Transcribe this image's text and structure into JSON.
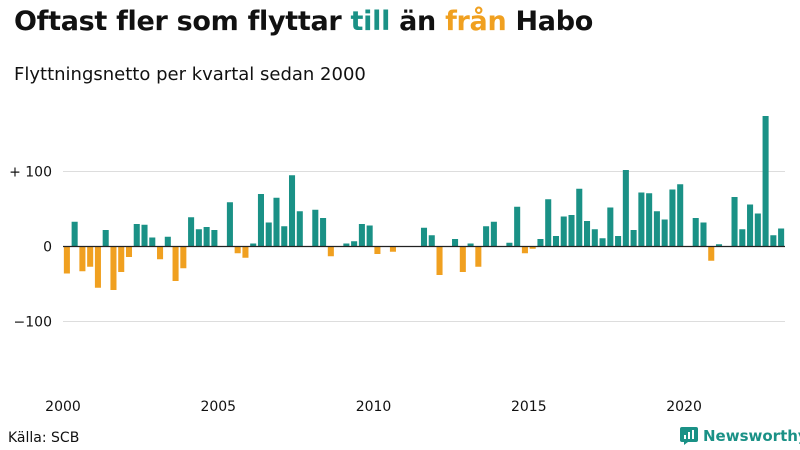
{
  "title": {
    "part1": "Oftast fler som flyttar ",
    "part2": "till",
    "part3": " än ",
    "part4": "från",
    "part5": " Habo"
  },
  "subtitle": "Flyttningsnetto per kvartal sedan 2000",
  "source": "Källa: SCB",
  "brand": {
    "name": "Newsworthy",
    "icon": "newsworthy-logo-icon"
  },
  "colors": {
    "positive": "#1a9186",
    "negative": "#f0a020",
    "grid": "#dddddd",
    "axis": "#222222"
  },
  "chart_data": {
    "type": "bar",
    "title": "Oftast fler som flyttar till än från Habo",
    "subtitle": "Flyttningsnetto per kvartal sedan 2000",
    "xlabel": "",
    "ylabel": "",
    "ylim": [
      -200,
      175
    ],
    "grid": true,
    "yticks": [
      {
        "value": 100,
        "label": "+ 100"
      },
      {
        "value": 0,
        "label": "0"
      },
      {
        "value": -100,
        "label": "−100"
      }
    ],
    "x_tick_labels": [
      {
        "index": 0,
        "label": "2000"
      },
      {
        "index": 20,
        "label": "2005"
      },
      {
        "index": 40,
        "label": "2010"
      },
      {
        "index": 60,
        "label": "2015"
      },
      {
        "index": 80,
        "label": "2020"
      }
    ],
    "first_quarter": "2000 Q1",
    "series": [
      {
        "name": "Flyttningsnetto",
        "values": [
          -36,
          33,
          -33,
          -27,
          -55,
          22,
          -58,
          -34,
          -14,
          30,
          29,
          12,
          -17,
          13,
          -46,
          -29,
          39,
          23,
          26,
          22,
          0,
          59,
          -9,
          -15,
          4,
          70,
          32,
          65,
          27,
          95,
          47,
          0,
          49,
          38,
          -13,
          0,
          4,
          7,
          30,
          28,
          -10,
          0,
          -7,
          0,
          0,
          0,
          25,
          15,
          -38,
          0,
          10,
          -34,
          4,
          -27,
          27,
          33,
          0,
          5,
          53,
          -9,
          -3,
          10,
          63,
          14,
          40,
          42,
          77,
          34,
          23,
          11,
          52,
          14,
          102,
          22,
          72,
          71,
          47,
          36,
          76,
          83,
          0,
          38,
          32,
          -19,
          3,
          0,
          66,
          23,
          56,
          44,
          174,
          15,
          24
        ]
      }
    ]
  }
}
